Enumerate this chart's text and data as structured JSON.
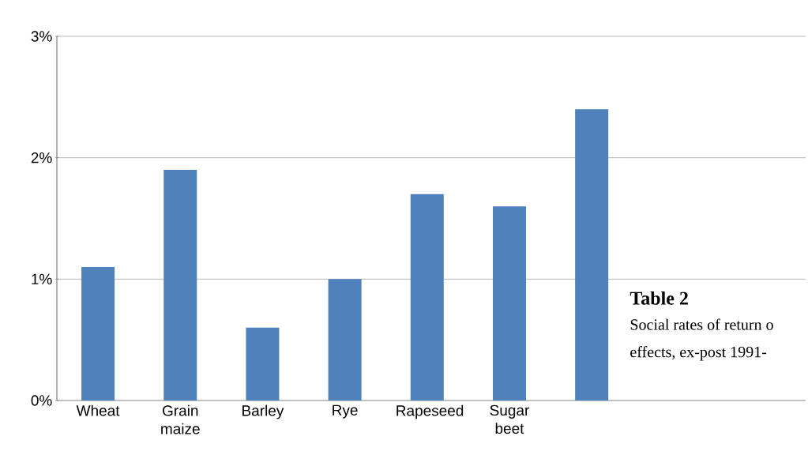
{
  "chart_data": {
    "type": "bar",
    "categories": [
      "Wheat",
      "Grain maize",
      "Barley",
      "Rye",
      "Rapeseed",
      "Sugar beet",
      null
    ],
    "values": [
      1.1,
      1.9,
      0.6,
      1.0,
      1.7,
      1.6,
      2.4
    ],
    "color": "#4f81bd",
    "ylim": [
      0,
      3
    ],
    "yticks": [
      {
        "value": 0,
        "label": "0%"
      },
      {
        "value": 1,
        "label": "1%"
      },
      {
        "value": 2,
        "label": "2%"
      },
      {
        "value": 3,
        "label": "3%"
      }
    ],
    "grid": "y",
    "annotations": [
      "Table 2",
      "Social rates of return o",
      "effects, ex-post 1991-"
    ]
  }
}
